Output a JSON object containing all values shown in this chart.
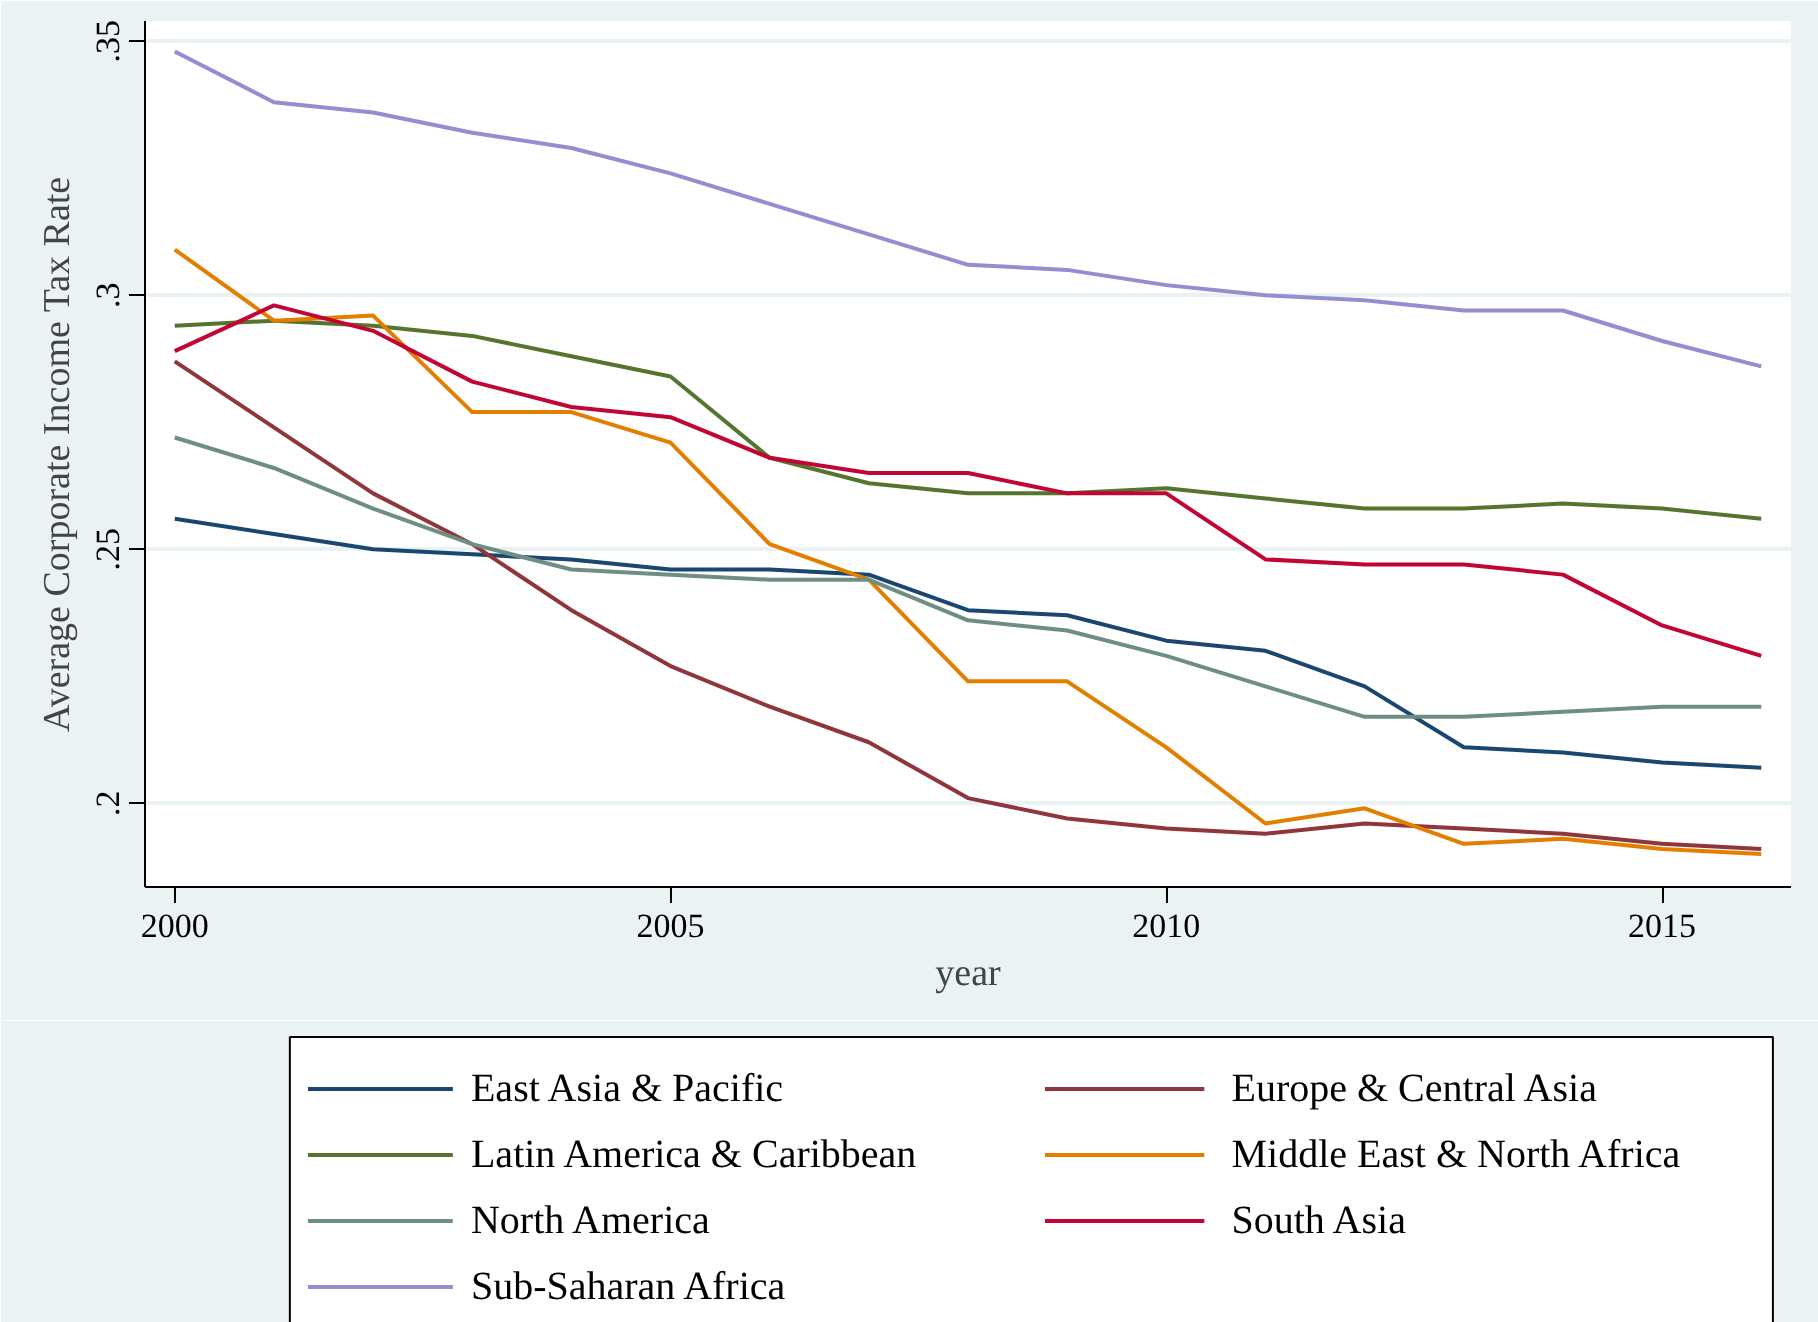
{
  "chart_data": {
    "type": "line",
    "xlabel": "year",
    "ylabel": "Average Corporate Income Tax Rate",
    "x": [
      2000,
      2001,
      2002,
      2003,
      2004,
      2005,
      2006,
      2007,
      2008,
      2009,
      2010,
      2011,
      2012,
      2013,
      2014,
      2015,
      2016
    ],
    "xlim": [
      1999.7,
      2016.3
    ],
    "xticks": [
      2000,
      2005,
      2010,
      2015
    ],
    "ylim": [
      0.1835,
      0.354
    ],
    "yticks": [
      {
        "value": 0.2,
        "label": ".2"
      },
      {
        "value": 0.25,
        "label": ".25"
      },
      {
        "value": 0.3,
        "label": ".3"
      },
      {
        "value": 0.35,
        "label": ".35"
      }
    ],
    "grid": "y",
    "legend": "bottom",
    "marker": "none",
    "line_style": "solid",
    "series": [
      {
        "name": "East Asia & Pacific",
        "color": "#1a476f",
        "values": [
          0.256,
          0.253,
          0.25,
          0.249,
          0.248,
          0.246,
          0.246,
          0.245,
          0.238,
          0.237,
          0.232,
          0.23,
          0.223,
          0.211,
          0.21,
          0.208,
          0.207
        ]
      },
      {
        "name": "Europe & Central Asia",
        "color": "#90353b",
        "values": [
          0.287,
          0.274,
          0.261,
          0.251,
          0.238,
          0.227,
          0.219,
          0.212,
          0.201,
          0.197,
          0.195,
          0.194,
          0.196,
          0.195,
          0.194,
          0.192,
          0.191
        ]
      },
      {
        "name": "Latin America & Caribbean",
        "color": "#55752f",
        "values": [
          0.294,
          0.295,
          0.294,
          0.292,
          0.288,
          0.284,
          0.268,
          0.263,
          0.261,
          0.261,
          0.262,
          0.26,
          0.258,
          0.258,
          0.259,
          0.258,
          0.256
        ]
      },
      {
        "name": "Middle East & North Africa",
        "color": "#e37e00",
        "values": [
          0.309,
          0.295,
          0.296,
          0.277,
          0.277,
          0.271,
          0.251,
          0.244,
          0.224,
          0.224,
          0.211,
          0.196,
          0.199,
          0.192,
          0.193,
          0.191,
          0.19
        ]
      },
      {
        "name": "North America",
        "color": "#6e8e84",
        "values": [
          0.272,
          0.266,
          0.258,
          0.251,
          0.246,
          0.245,
          0.244,
          0.244,
          0.236,
          0.234,
          0.229,
          0.223,
          0.217,
          0.217,
          0.218,
          0.219,
          0.219
        ]
      },
      {
        "name": "South Asia",
        "color": "#c10534",
        "values": [
          0.289,
          0.298,
          0.293,
          0.283,
          0.278,
          0.276,
          0.268,
          0.265,
          0.265,
          0.261,
          0.261,
          0.248,
          0.247,
          0.247,
          0.245,
          0.235,
          0.229
        ]
      },
      {
        "name": "Sub-Saharan Africa",
        "color": "#938dd2",
        "values": [
          0.348,
          0.338,
          0.336,
          0.332,
          0.329,
          0.324,
          0.318,
          0.312,
          0.306,
          0.305,
          0.302,
          0.3,
          0.299,
          0.297,
          0.297,
          0.291,
          0.286
        ]
      }
    ]
  }
}
